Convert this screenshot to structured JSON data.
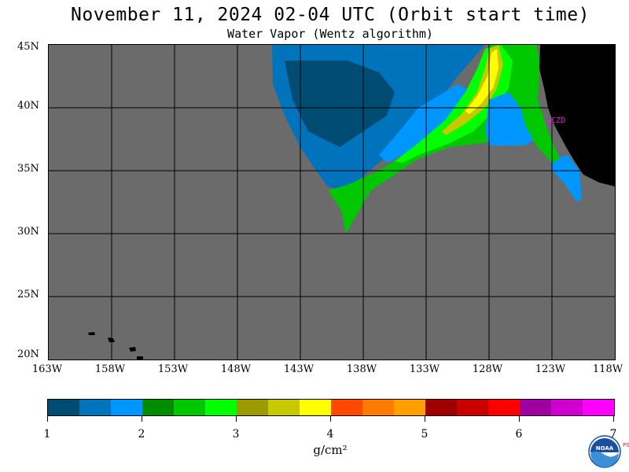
{
  "title": "November 11, 2024  02-04 UTC  (Orbit start time)",
  "subtitle": "Water Vapor (Wentz algorithm)",
  "map": {
    "lat_labels": [
      "45N",
      "40N",
      "35N",
      "30N",
      "25N",
      "20N"
    ],
    "lon_labels": [
      "163W",
      "158W",
      "153W",
      "148W",
      "143W",
      "138W",
      "133W",
      "128W",
      "123W",
      "118W"
    ],
    "station_label": "CZD",
    "land_color": "#000000",
    "nodata_color": "#6b6b6b",
    "grid_color": "#000000",
    "station_color": "#e020e0"
  },
  "colorbar": {
    "colors": [
      "#004c73",
      "#0073bd",
      "#0096ff",
      "#008c00",
      "#00c800",
      "#00ff00",
      "#9c9c00",
      "#c8c800",
      "#ffff00",
      "#ff4800",
      "#ff7a00",
      "#ffa000",
      "#a00000",
      "#c80000",
      "#ff0000",
      "#a000a0",
      "#d000d0",
      "#ff00ff"
    ],
    "tick_labels": [
      "1",
      "2",
      "3",
      "4",
      "5",
      "6",
      "7"
    ],
    "unit": "g/cm²"
  },
  "logo": {
    "text": "NOAA",
    "side_text": "PSL"
  }
}
